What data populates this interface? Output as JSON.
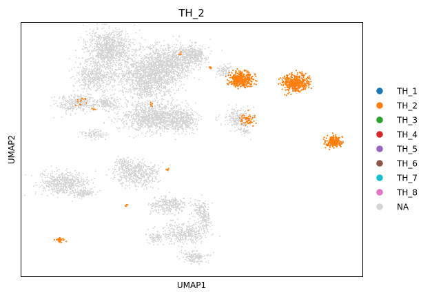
{
  "chart_data": {
    "type": "scatter",
    "title": "TH_2",
    "xlabel": "UMAP1",
    "ylabel": "UMAP2",
    "x_ticks": false,
    "y_ticks": false,
    "grid": false,
    "legend_position": "right-outside",
    "legend": [
      {
        "label": "TH_1",
        "color": "#1f77b4"
      },
      {
        "label": "TH_2",
        "color": "#ff7f0e"
      },
      {
        "label": "TH_3",
        "color": "#2ca02c"
      },
      {
        "label": "TH_4",
        "color": "#d62728"
      },
      {
        "label": "TH_5",
        "color": "#9467bd"
      },
      {
        "label": "TH_6",
        "color": "#8c564b"
      },
      {
        "label": "TH_7",
        "color": "#17becf"
      },
      {
        "label": "TH_8",
        "color": "#e377c2"
      },
      {
        "label": "NA",
        "color": "#d3d3d3"
      }
    ],
    "highlighted_group": "TH_2",
    "highlight_color": "#ff7f0e",
    "background_color": "#d3d3d3"
  }
}
